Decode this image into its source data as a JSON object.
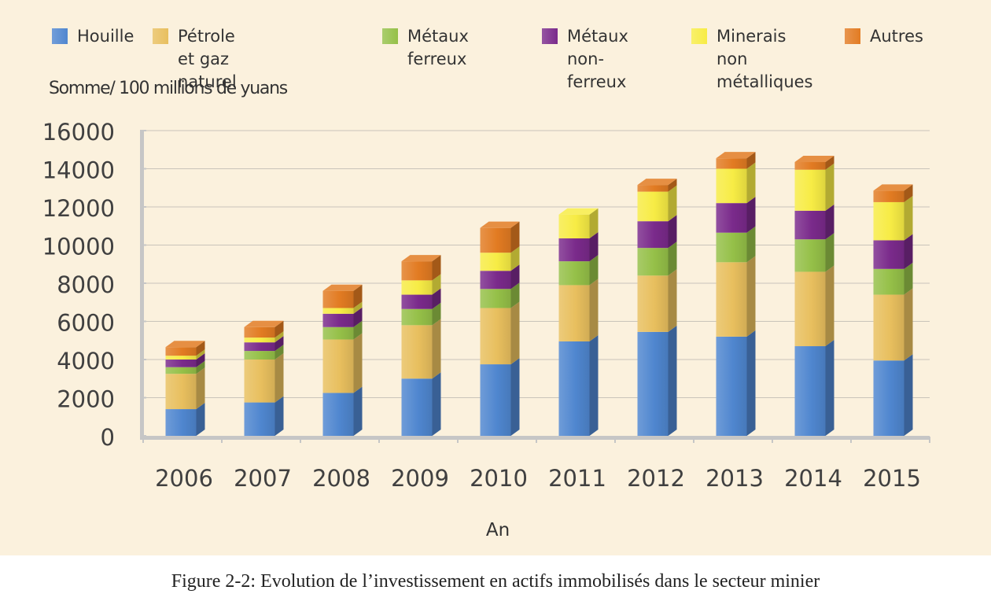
{
  "chart_data": {
    "type": "bar",
    "stacked": true,
    "categories": [
      "2006",
      "2007",
      "2008",
      "2009",
      "2010",
      "2011",
      "2012",
      "2013",
      "2014",
      "2015"
    ],
    "series": [
      {
        "name": "Houille",
        "color": "#4f86cf",
        "values": [
          1400,
          1750,
          2250,
          3000,
          3750,
          4950,
          5450,
          5200,
          4700,
          3950
        ]
      },
      {
        "name": "Pétrole et gaz naturel",
        "color": "#e8bf5e",
        "values": [
          1850,
          2250,
          2800,
          2800,
          2950,
          2950,
          2950,
          3900,
          3900,
          3450
        ]
      },
      {
        "name": "Métaux ferreux",
        "color": "#95c048",
        "values": [
          350,
          450,
          650,
          850,
          1000,
          1250,
          1450,
          1550,
          1700,
          1350
        ]
      },
      {
        "name": "Métaux non-ferreux",
        "color": "#7a2a8b",
        "values": [
          400,
          450,
          700,
          750,
          950,
          1200,
          1400,
          1550,
          1500,
          1500
        ]
      },
      {
        "name": "Minerais non métalliques",
        "color": "#f7ec45",
        "values": [
          200,
          250,
          300,
          750,
          950,
          1250,
          1550,
          1800,
          2150,
          2000
        ]
      },
      {
        "name": "Autres",
        "color": "#e27b22",
        "values": [
          450,
          550,
          900,
          1000,
          1300,
          0,
          350,
          550,
          400,
          600
        ]
      }
    ],
    "legend": [
      {
        "label": "Houille",
        "color": "#4f86cf"
      },
      {
        "label": "Pétrole et gaz naturel",
        "color": "#e8bf5e"
      },
      {
        "label": "Métaux ferreux",
        "color": "#95c048"
      },
      {
        "label": "Métaux non-\nferreux",
        "color": "#7a2a8b"
      },
      {
        "label": "Minerais non\nmétalliques",
        "color": "#f7ec45"
      },
      {
        "label": "Autres",
        "color": "#e27b22"
      }
    ],
    "yticks": [
      "0",
      "2000",
      "4000",
      "6000",
      "8000",
      "10000",
      "12000",
      "14000",
      "16000"
    ],
    "ylim": [
      0,
      16000
    ],
    "ylabel": "Somme/ 100 millions de yuans",
    "xlabel": "An",
    "grid": true,
    "legend_position": "top"
  },
  "caption": "Figure 2-2: Evolution de l’investissement en actifs immobilisés dans le secteur minier"
}
